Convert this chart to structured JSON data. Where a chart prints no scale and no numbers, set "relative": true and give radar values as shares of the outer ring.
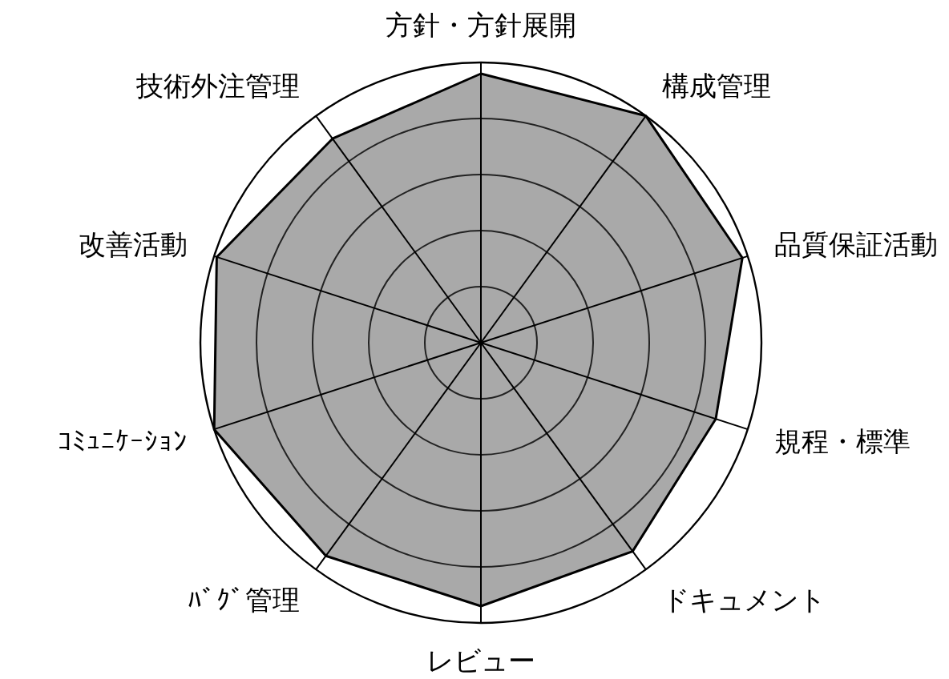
{
  "chart_data": {
    "type": "radar",
    "relative": true,
    "grid": true,
    "categories": [
      "方針・方針展開",
      "構成管理",
      "品質保証活動",
      "規程・標準",
      "ドキュメント",
      "レビュー",
      "ﾊﾞｸﾞ管理",
      "ｺﾐｭﾆｹｰｼｮﾝ",
      "改善活動",
      "技術外注管理"
    ],
    "series": [
      {
        "color": "#8c8c8c",
        "values": [
          0.96,
          1.0,
          0.98,
          0.88,
          0.92,
          0.94,
          0.94,
          1.0,
          0.99,
          0.9
        ]
      }
    ]
  }
}
